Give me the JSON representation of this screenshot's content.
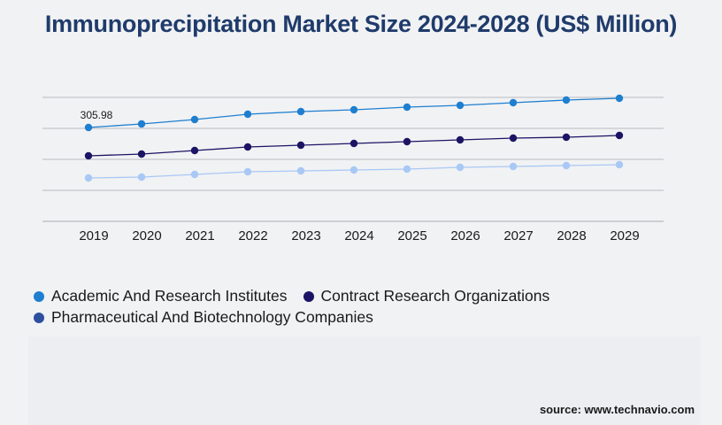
{
  "title": "Immunoprecipitation Market Size 2024-2028 (US$ Million)",
  "source": "source: www.technavio.com",
  "colors": {
    "title": "#1f3b6b",
    "grid": "#b9bbbf",
    "axis": "#333333"
  },
  "chart_data": {
    "type": "line",
    "title": "Immunoprecipitation Market Size 2024-2028 (US$ Million)",
    "xlabel": "",
    "ylabel": "",
    "x": [
      "2019",
      "2020",
      "2021",
      "2022",
      "2023",
      "2024",
      "2025",
      "2026",
      "2027",
      "2028",
      "2029"
    ],
    "grid": true,
    "legend_position": "bottom",
    "series": [
      {
        "name": "Academic And Research Institutes",
        "color": "#1e7fd0",
        "values": [
          306,
          310,
          315,
          321,
          324,
          326,
          329,
          331,
          334,
          337,
          339
        ],
        "labels": [
          "305.98",
          "",
          "",
          "",
          "",
          "",
          "",
          "",
          "",
          "",
          ""
        ]
      },
      {
        "name": "Contract Research Organizations",
        "color": "#1b1464",
        "values": [
          274,
          276,
          280,
          284,
          286,
          288,
          290,
          292,
          294,
          295,
          297
        ],
        "labels": [
          "",
          "",
          "",
          "",
          "",
          "",
          "",
          "",
          "",
          "",
          ""
        ]
      },
      {
        "name": "Pharmaceutical And Biotechnology Companies",
        "color": "#a9c8f5",
        "values": [
          249,
          250,
          253,
          256,
          257,
          258,
          259,
          261,
          262,
          263,
          264
        ],
        "labels": [
          "",
          "",
          "",
          "",
          "",
          "",
          "",
          "",
          "",
          "",
          ""
        ]
      }
    ],
    "legend": [
      {
        "name": "Academic And Research Institutes",
        "color": "#1e7fd0"
      },
      {
        "name": "Contract Research Organizations",
        "color": "#1b1464"
      },
      {
        "name": "Pharmaceutical And Biotechnology Companies",
        "color": "#2d4f9e"
      }
    ]
  }
}
